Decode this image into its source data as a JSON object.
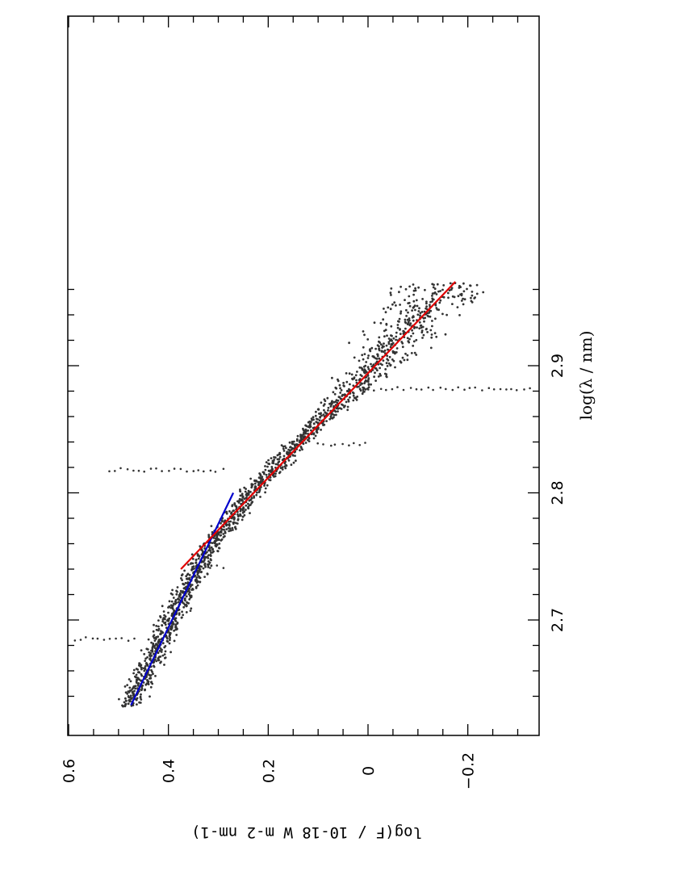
{
  "chart_data": {
    "type": "scatter",
    "orientation": "rotated-90",
    "xlabel": "log(λ / nm)",
    "ylabel": "log(F / 10-18 W m-2 nm-1)",
    "xlim": [
      2.63,
      2.97
    ],
    "ylim": [
      -0.345,
      0.6
    ],
    "x_ticks": [
      "2.7",
      "2.8",
      "2.9"
    ],
    "y_ticks": [
      "0.6",
      "0.4",
      "0.2",
      "0",
      "−0.2"
    ],
    "grid": false,
    "legend": "none",
    "series": [
      {
        "style": "points",
        "color": "#000000",
        "x_range": [
          2.632,
          2.965
        ],
        "y_values_at": [
          {
            "x": 2.635,
            "y": 0.475
          },
          {
            "x": 2.68,
            "y": 0.42
          },
          {
            "x": 2.72,
            "y": 0.37
          },
          {
            "x": 2.76,
            "y": 0.31
          },
          {
            "x": 2.8,
            "y": 0.235
          },
          {
            "x": 2.84,
            "y": 0.14
          },
          {
            "x": 2.88,
            "y": 0.035
          },
          {
            "x": 2.92,
            "y": -0.06
          },
          {
            "x": 2.96,
            "y": -0.14
          }
        ]
      },
      {
        "style": "line",
        "color": "#0000cc",
        "x": [
          2.633,
          2.8
        ],
        "y": [
          0.475,
          0.27
        ]
      },
      {
        "style": "line",
        "color": "#e00000",
        "x": [
          2.74,
          2.966
        ],
        "y": [
          0.375,
          -0.175
        ]
      }
    ]
  }
}
